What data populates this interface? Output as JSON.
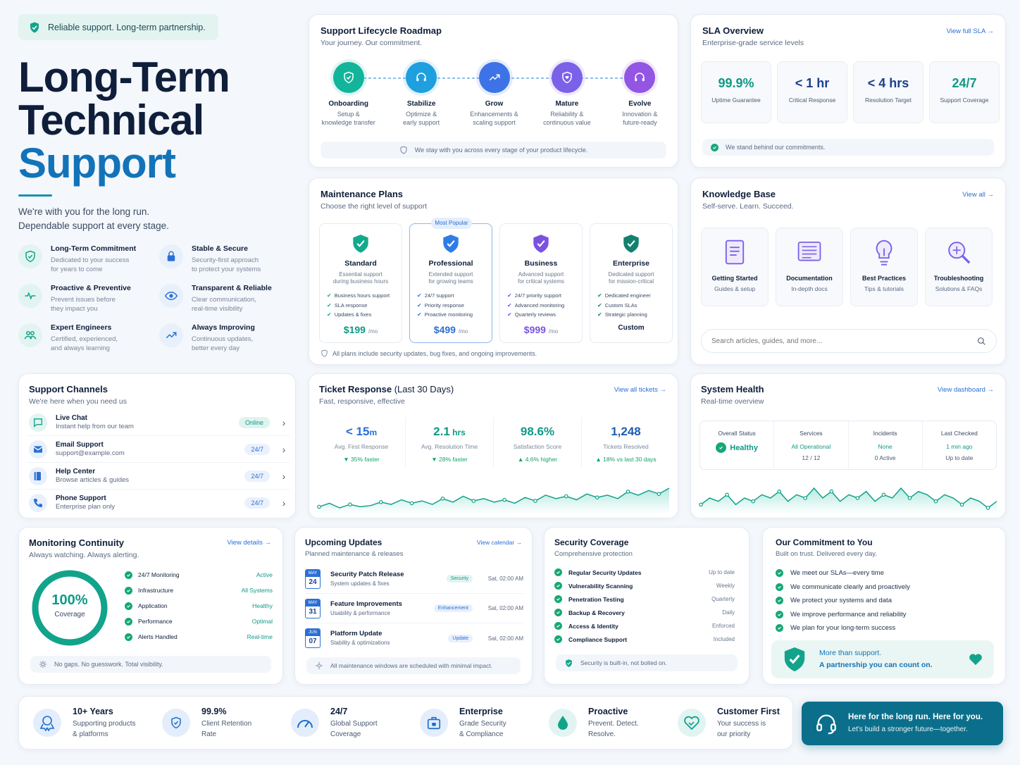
{
  "hero": {
    "badge": "Reliable support. Long-term partnership.",
    "title1": "Long-Term",
    "title2": "Technical",
    "title3": "Support",
    "desc1": "We're with you for the long run.",
    "desc2": "Dependable support at every stage.",
    "features": [
      {
        "title": "Long-Term Commitment",
        "l1": "Dedicated to your success",
        "l2": "for years to come",
        "icon": "shield-check-icon"
      },
      {
        "title": "Stable & Secure",
        "l1": "Security-first approach",
        "l2": "to protect your systems",
        "icon": "lock-icon"
      },
      {
        "title": "Proactive & Preventive",
        "l1": "Prevent issues before",
        "l2": "they impact you",
        "icon": "pulse-icon"
      },
      {
        "title": "Transparent & Reliable",
        "l1": "Clear communication,",
        "l2": "real-time visibility",
        "icon": "eye-icon"
      },
      {
        "title": "Expert Engineers",
        "l1": "Certified, experienced,",
        "l2": "and always learning",
        "icon": "users-icon"
      },
      {
        "title": "Always Improving",
        "l1": "Continuous updates,",
        "l2": "better every day",
        "icon": "trend-up-icon"
      }
    ]
  },
  "roadmap": {
    "title": "Support Lifecycle Roadmap",
    "subtitle": "Your journey. Our commitment.",
    "steps": [
      {
        "name": "Onboarding",
        "l1": "Setup &",
        "l2": "knowledge transfer",
        "color": "#13b59a",
        "icon": "shield-check-icon"
      },
      {
        "name": "Stabilize",
        "l1": "Optimize &",
        "l2": "early support",
        "color": "#1e9fe0",
        "icon": "headset-icon"
      },
      {
        "name": "Grow",
        "l1": "Enhancements &",
        "l2": "scaling support",
        "color": "#3d73e6",
        "icon": "trend-up-icon"
      },
      {
        "name": "Mature",
        "l1": "Reliability &",
        "l2": "continuous value",
        "color": "#7b61e8",
        "icon": "shield-heart-icon"
      },
      {
        "name": "Evolve",
        "l1": "Innovation &",
        "l2": "future-ready",
        "color": "#9255e4",
        "icon": "headset-icon"
      }
    ],
    "footer": "We stay with you across every stage of your product lifecycle."
  },
  "sla": {
    "title": "SLA Overview",
    "subtitle": "Enterprise-grade service levels",
    "link": "View full SLA",
    "stats": [
      {
        "value": "99.9%",
        "label": "Uptime Guarantee",
        "color": "#0e9a86"
      },
      {
        "value": "< 1 hr",
        "label": "Critical Response",
        "color": "#1b3f8f"
      },
      {
        "value": "< 4 hrs",
        "label": "Resolution Target",
        "color": "#1b3f8f"
      },
      {
        "value": "24/7",
        "label": "Support Coverage",
        "color": "#0e9a86"
      }
    ],
    "footer": "We stand behind our commitments."
  },
  "plans": {
    "title": "Maintenance Plans",
    "subtitle": "Choose the right level of support",
    "popular": "Most Popular",
    "items": [
      {
        "name": "Standard",
        "d1": "Essential support",
        "d2": "during business hours",
        "features": [
          "Business hours support",
          "SLA response",
          "Updates & fixes"
        ],
        "price": "$199",
        "per": "/mo",
        "color": "#13a98d",
        "pricecolor": "#0e9a86"
      },
      {
        "name": "Professional",
        "d1": "Extended support",
        "d2": "for growing teams",
        "features": [
          "24/7 support",
          "Priority response",
          "Proactive monitoring"
        ],
        "price": "$499",
        "per": "/mo",
        "color": "#2f7be8",
        "pricecolor": "#2a6fd6"
      },
      {
        "name": "Business",
        "d1": "Advanced support",
        "d2": "for critical systems",
        "features": [
          "24/7 priority support",
          "Advanced monitoring",
          "Quarterly reviews"
        ],
        "price": "$999",
        "per": "/mo",
        "color": "#7b52e0",
        "pricecolor": "#7b52e0"
      },
      {
        "name": "Enterprise",
        "d1": "Dedicated support",
        "d2": "for mission-critical",
        "features": [
          "Dedicated engineer",
          "Custom SLAs",
          "Strategic planning"
        ],
        "price": "Custom",
        "per": "",
        "color": "#14806f",
        "pricecolor": "#0f1e3a"
      }
    ],
    "footer": "All plans include security updates, bug fixes, and ongoing improvements."
  },
  "kb": {
    "title": "Knowledge Base",
    "subtitle": "Self-serve. Learn. Succeed.",
    "link": "View all",
    "items": [
      {
        "name": "Getting Started",
        "desc": "Guides & setup",
        "icon": "document-icon",
        "color": "#7b61e8"
      },
      {
        "name": "Documentation",
        "desc": "In-depth docs",
        "icon": "docs-icon",
        "color": "#7b61e8"
      },
      {
        "name": "Best Practices",
        "desc": "Tips & tutorials",
        "icon": "bulb-icon",
        "color": "#7b61e8"
      },
      {
        "name": "Troubleshooting",
        "desc": "Solutions & FAQs",
        "icon": "magnifier-icon",
        "color": "#7b61e8"
      }
    ],
    "search_placeholder": "Search articles, guides, and more..."
  },
  "channels": {
    "title": "Support Channels",
    "subtitle": "We're here when you need us",
    "items": [
      {
        "name": "Live Chat",
        "desc": "Instant help from our team",
        "badge": "Online",
        "icon": "chat-icon"
      },
      {
        "name": "Email Support",
        "desc": "support@example.com",
        "badge": "24/7",
        "icon": "mail-icon"
      },
      {
        "name": "Help Center",
        "desc": "Browse articles & guides",
        "badge": "24/7",
        "icon": "book-icon"
      },
      {
        "name": "Phone Support",
        "desc": "Enterprise plan only",
        "badge": "24/7",
        "icon": "phone-icon"
      }
    ]
  },
  "tickets": {
    "title": "Ticket Response",
    "title_suffix": "(Last 30 Days)",
    "subtitle": "Fast, responsive, effective",
    "link": "View all tickets",
    "stats": [
      {
        "value": "< 15",
        "unit": "m",
        "label": "Avg. First Response",
        "delta": "▼ 35% faster",
        "color": "#2a6fd6"
      },
      {
        "value": "2.1",
        "unit": " hrs",
        "label": "Avg. Resolution Time",
        "delta": "▼ 28% faster",
        "color": "#0e9a86"
      },
      {
        "value": "98.6%",
        "unit": "",
        "label": "Satisfaction Score",
        "delta": "▲ 4.6% higher",
        "color": "#0e9a86"
      },
      {
        "value": "1,248",
        "unit": "",
        "label": "Tickets Resolved",
        "delta": "▲ 18% vs last 30 days",
        "color": "#1b5fb0"
      }
    ],
    "spark": [
      10,
      13,
      9,
      12,
      10,
      11,
      14,
      12,
      16,
      13,
      15,
      12,
      17,
      14,
      19,
      15,
      17,
      14,
      16,
      13,
      18,
      15,
      20,
      17,
      19,
      16,
      21,
      18,
      20,
      17,
      23,
      20,
      24,
      21,
      26
    ]
  },
  "health": {
    "title": "System Health",
    "subtitle": "Real-time overview",
    "link": "View dashboard",
    "cols": [
      {
        "label": "Overall Status",
        "value": "Healthy",
        "sub": ""
      },
      {
        "label": "Services",
        "value": "All Operational",
        "sub": "12 / 12"
      },
      {
        "label": "Incidents",
        "value": "None",
        "sub": "0 Active"
      },
      {
        "label": "Last Checked",
        "value": "1 min ago",
        "sub": "Up to date"
      }
    ],
    "spark": [
      14,
      16,
      15,
      17,
      14,
      16,
      15,
      17,
      16,
      18,
      15,
      17,
      16,
      19,
      16,
      18,
      15,
      17,
      16,
      18,
      15,
      17,
      16,
      19,
      16,
      18,
      17,
      15,
      17,
      16,
      14,
      16,
      15,
      13,
      15
    ]
  },
  "monitoring": {
    "title": "Monitoring Continuity",
    "subtitle": "Always watching. Always alerting.",
    "link": "View details",
    "gauge_value": "100%",
    "gauge_label": "Coverage",
    "gauge_fraction": 1,
    "items": [
      {
        "name": "24/7 Monitoring",
        "status": "Active"
      },
      {
        "name": "Infrastructure",
        "status": "All Systems"
      },
      {
        "name": "Application",
        "status": "Healthy"
      },
      {
        "name": "Performance",
        "status": "Optimal"
      },
      {
        "name": "Alerts Handled",
        "status": "Real-time"
      }
    ],
    "footer": "No gaps. No guesswork. Total visibility."
  },
  "updates": {
    "title": "Upcoming Updates",
    "subtitle": "Planned maintenance & releases",
    "link": "View calendar",
    "items": [
      {
        "month": "MAY",
        "day": "24",
        "name": "Security Patch Release",
        "desc": "System updates & fixes",
        "tag": "Security",
        "time": "Sat, 02:00 AM"
      },
      {
        "month": "MAY",
        "day": "31",
        "name": "Feature Improvements",
        "desc": "Usability & performance",
        "tag": "Enhancement",
        "time": "Sat, 02:00 AM"
      },
      {
        "month": "JUN",
        "day": "07",
        "name": "Platform Update",
        "desc": "Stability & optimizations",
        "tag": "Update",
        "time": "Sat, 02:00 AM"
      }
    ],
    "footer": "All maintenance windows are scheduled with minimal impact."
  },
  "security": {
    "title": "Security Coverage",
    "subtitle": "Comprehensive protection",
    "items": [
      {
        "name": "Regular Security Updates",
        "value": "Up to date"
      },
      {
        "name": "Vulnerability Scanning",
        "value": "Weekly"
      },
      {
        "name": "Penetration Testing",
        "value": "Quarterly"
      },
      {
        "name": "Backup & Recovery",
        "value": "Daily"
      },
      {
        "name": "Access & Identity",
        "value": "Enforced"
      },
      {
        "name": "Compliance Support",
        "value": "Included"
      }
    ],
    "footer": "Security is built-in, not bolted on."
  },
  "commitment": {
    "title": "Our Commitment to You",
    "subtitle": "Built on trust. Delivered every day.",
    "items": [
      "We meet our SLAs—every time",
      "We communicate clearly and proactively",
      "We protect your systems and data",
      "We improve performance and reliability",
      "We plan for your long-term success"
    ],
    "banner1": "More than support.",
    "banner2": "A partnership you can count on."
  },
  "bottom": {
    "stats": [
      {
        "title": "10+ Years",
        "l1": "Supporting products",
        "l2": "& platforms",
        "icon": "award-icon"
      },
      {
        "title": "99.9%",
        "l1": "Client Retention",
        "l2": "Rate",
        "icon": "shield-check-icon"
      },
      {
        "title": "24/7",
        "l1": "Global Support",
        "l2": "Coverage",
        "icon": "gauge-icon"
      },
      {
        "title": "Enterprise",
        "l1": "Grade Security",
        "l2": "& Compliance",
        "icon": "briefcase-lock-icon"
      },
      {
        "title": "Proactive",
        "l1": "Prevent. Detect.",
        "l2": "Resolve.",
        "icon": "drop-icon"
      },
      {
        "title": "Customer First",
        "l1": "Your success is",
        "l2": "our priority",
        "icon": "handshake-icon"
      }
    ],
    "cta1": "Here for the long run. Here for you.",
    "cta2": "Let's build a stronger future—together."
  },
  "colors": {
    "navy": "#0f1e3a",
    "teal": "#0e9a86",
    "blue": "#2a6fd6",
    "cta": "#0b6f8c"
  }
}
